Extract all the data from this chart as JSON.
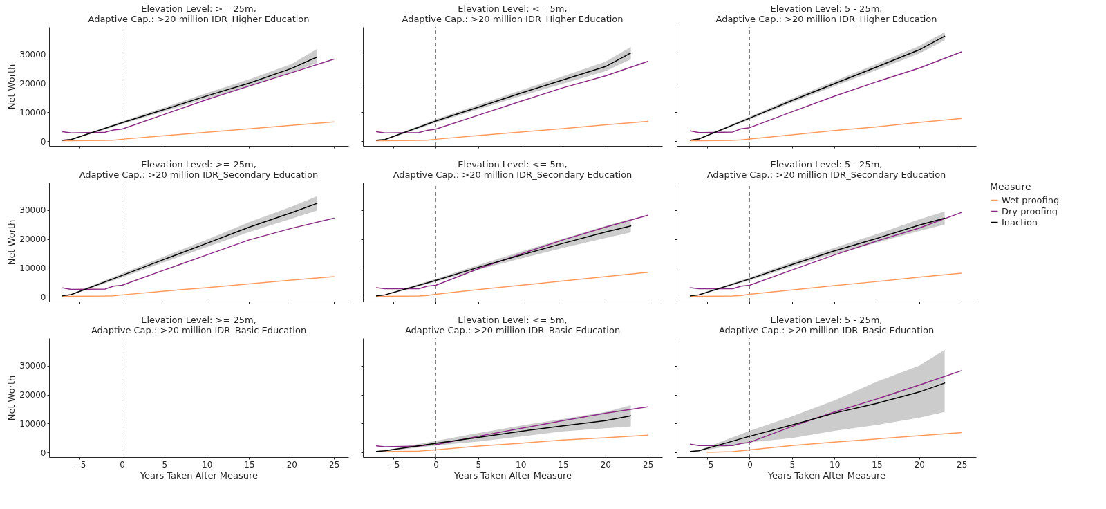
{
  "chart_data": [
    {
      "type": "line",
      "title": "Elevation Level: >= 25m,\nAdaptive Cap.: >20 million IDR_Higher Education",
      "ylabel": "Net Worth",
      "xlim": [
        -8.6,
        26.7
      ],
      "ylim": [
        -1600,
        39500
      ],
      "xticks": [
        -5,
        0,
        5,
        10,
        15,
        20,
        25
      ],
      "yticks": [
        0,
        10000,
        20000,
        30000
      ],
      "tick_labels": "y",
      "ref_lines": [
        {
          "axis": "x",
          "value": 0,
          "color": "#7f7f7f",
          "line_style": "dashed"
        }
      ],
      "series": [
        {
          "color": "#fd9a5c",
          "x": [
            -7,
            -6,
            -2,
            -1,
            0,
            5,
            10,
            15,
            20,
            25
          ],
          "values": [
            200,
            200,
            300,
            400,
            700,
            1900,
            3100,
            4300,
            5500,
            6700
          ]
        },
        {
          "color": "#8b2a84",
          "x": [
            -7,
            -6,
            -2,
            -1,
            0,
            5,
            10,
            15,
            20,
            25
          ],
          "values": [
            3300,
            2900,
            3100,
            3900,
            4200,
            9300,
            14400,
            19100,
            23700,
            28400
          ]
        },
        {
          "color": "#000000",
          "x": [
            -7,
            -6,
            0,
            5,
            10,
            15,
            20,
            23
          ],
          "values": [
            400,
            600,
            6400,
            11000,
            15700,
            20100,
            25200,
            29100
          ],
          "lower": [
            300,
            400,
            5900,
            10300,
            14800,
            18900,
            23800,
            27100
          ],
          "upper": [
            500,
            800,
            6900,
            11700,
            16700,
            21400,
            26700,
            31900
          ]
        }
      ]
    },
    {
      "type": "line",
      "title": "Elevation Level: <= 5m,\nAdaptive Cap.: >20 million IDR_Higher Education",
      "xlim": [
        -8.6,
        26.7
      ],
      "ylim": [
        -1600,
        39500
      ],
      "xticks": [
        -5,
        0,
        5,
        10,
        15,
        20,
        25
      ],
      "yticks": [
        0,
        10000,
        20000,
        30000
      ],
      "tick_labels": false,
      "ref_lines": [
        {
          "axis": "x",
          "value": 0,
          "color": "#7f7f7f",
          "line_style": "dashed"
        }
      ],
      "series": [
        {
          "color": "#fd9a5c",
          "x": [
            -7,
            -6,
            -2,
            -1,
            0,
            5,
            10,
            15,
            20,
            25
          ],
          "values": [
            200,
            200,
            300,
            400,
            700,
            2000,
            3200,
            4400,
            5700,
            6900
          ]
        },
        {
          "color": "#8b2a84",
          "x": [
            -7,
            -6,
            -2,
            -1,
            0,
            5,
            10,
            15,
            20,
            25
          ],
          "values": [
            3300,
            2900,
            3000,
            3800,
            4200,
            9000,
            13800,
            18500,
            22600,
            27600
          ]
        },
        {
          "color": "#000000",
          "x": [
            -7,
            -6,
            0,
            5,
            10,
            15,
            20,
            23
          ],
          "values": [
            400,
            600,
            7000,
            11800,
            16600,
            21200,
            25800,
            30500
          ],
          "lower": [
            300,
            400,
            6400,
            11000,
            15600,
            19900,
            24200,
            28300
          ],
          "upper": [
            500,
            800,
            7600,
            12600,
            17600,
            22500,
            27500,
            32600
          ]
        }
      ]
    },
    {
      "type": "line",
      "title": "Elevation Level: 5 - 25m,\nAdaptive Cap.: >20 million IDR_Higher Education",
      "xlim": [
        -8.6,
        26.7
      ],
      "ylim": [
        -1600,
        39500
      ],
      "xticks": [
        -5,
        0,
        5,
        10,
        15,
        20,
        25
      ],
      "yticks": [
        0,
        10000,
        20000,
        30000
      ],
      "tick_labels": false,
      "ref_lines": [
        {
          "axis": "x",
          "value": 0,
          "color": "#7f7f7f",
          "line_style": "dashed"
        }
      ],
      "series": [
        {
          "color": "#fd9a5c",
          "x": [
            -7,
            -6,
            -2,
            -1,
            0,
            5,
            10,
            15,
            20,
            25
          ],
          "values": [
            200,
            200,
            300,
            500,
            800,
            2200,
            3700,
            5000,
            6500,
            7900
          ]
        },
        {
          "color": "#8b2a84",
          "x": [
            -7,
            -6,
            -2,
            -1,
            0,
            5,
            10,
            15,
            20,
            25
          ],
          "values": [
            3600,
            3000,
            3200,
            4300,
            4700,
            10200,
            15600,
            20600,
            25300,
            30900
          ]
        },
        {
          "color": "#000000",
          "x": [
            -7,
            -6,
            0,
            5,
            10,
            15,
            20,
            23
          ],
          "values": [
            400,
            800,
            8000,
            14100,
            19900,
            25700,
            31600,
            36300
          ],
          "lower": [
            300,
            600,
            7500,
            13400,
            19000,
            24600,
            30300,
            34900
          ],
          "upper": [
            500,
            1000,
            8500,
            14800,
            20800,
            26800,
            32900,
            37700
          ]
        }
      ]
    },
    {
      "type": "line",
      "title": "Elevation Level: >= 25m,\nAdaptive Cap.: >20 million IDR_Secondary Education",
      "ylabel": "Net Worth",
      "xlim": [
        -8.6,
        26.7
      ],
      "ylim": [
        -1600,
        39500
      ],
      "xticks": [
        -5,
        0,
        5,
        10,
        15,
        20,
        25
      ],
      "yticks": [
        0,
        10000,
        20000,
        30000
      ],
      "tick_labels": "y",
      "ref_lines": [
        {
          "axis": "x",
          "value": 0,
          "color": "#7f7f7f",
          "line_style": "dashed"
        }
      ],
      "series": [
        {
          "color": "#fd9a5c",
          "x": [
            -7,
            -6,
            -2,
            -1,
            0,
            5,
            10,
            15,
            20,
            25
          ],
          "values": [
            200,
            200,
            300,
            400,
            700,
            2000,
            3200,
            4500,
            5800,
            7000
          ]
        },
        {
          "color": "#8b2a84",
          "x": [
            -7,
            -6,
            -2,
            -1,
            0,
            5,
            10,
            15,
            20,
            25
          ],
          "values": [
            3100,
            2600,
            2700,
            3700,
            4000,
            9300,
            14500,
            19700,
            23700,
            27200
          ]
        },
        {
          "color": "#000000",
          "x": [
            -7,
            -6,
            0,
            5,
            10,
            15,
            20,
            23
          ],
          "values": [
            400,
            800,
            7400,
            13000,
            18500,
            24100,
            29100,
            32300
          ],
          "lower": [
            300,
            600,
            6700,
            12000,
            17200,
            22400,
            27000,
            29800
          ],
          "upper": [
            500,
            1000,
            8100,
            14000,
            19800,
            25800,
            31200,
            34800
          ]
        }
      ]
    },
    {
      "type": "line",
      "title": "Elevation Level: <= 5m,\nAdaptive Cap.: >20 million IDR_Secondary Education",
      "xlim": [
        -8.6,
        26.7
      ],
      "ylim": [
        -1600,
        39500
      ],
      "xticks": [
        -5,
        0,
        5,
        10,
        15,
        20,
        25
      ],
      "yticks": [
        0,
        10000,
        20000,
        30000
      ],
      "tick_labels": false,
      "ref_lines": [
        {
          "axis": "x",
          "value": 0,
          "color": "#7f7f7f",
          "line_style": "dashed"
        }
      ],
      "series": [
        {
          "color": "#fd9a5c",
          "x": [
            -7,
            -6,
            -2,
            -1,
            0,
            5,
            10,
            15,
            20,
            25
          ],
          "values": [
            200,
            200,
            300,
            500,
            900,
            2500,
            4000,
            5500,
            7000,
            8500
          ]
        },
        {
          "color": "#8b2a84",
          "x": [
            -7,
            -6,
            -2,
            -1,
            0,
            5,
            10,
            15,
            20,
            25
          ],
          "values": [
            3200,
            2800,
            2800,
            3700,
            4000,
            9700,
            14800,
            19700,
            24100,
            28200
          ]
        },
        {
          "color": "#000000",
          "x": [
            -7,
            -6,
            0,
            5,
            10,
            15,
            20,
            23
          ],
          "values": [
            400,
            700,
            5700,
            10200,
            14400,
            18500,
            22400,
            24500
          ],
          "lower": [
            300,
            500,
            5200,
            9400,
            13200,
            16900,
            20300,
            22300
          ],
          "upper": [
            500,
            900,
            6200,
            11000,
            15600,
            20100,
            24500,
            26900
          ]
        }
      ]
    },
    {
      "type": "line",
      "title": "Elevation Level: 5 - 25m,\nAdaptive Cap.: >20 million IDR_Secondary Education",
      "legend_title": "Measure",
      "legend": "right",
      "xlim": [
        -8.6,
        26.7
      ],
      "ylim": [
        -1600,
        39500
      ],
      "xticks": [
        -5,
        0,
        5,
        10,
        15,
        20,
        25
      ],
      "yticks": [
        0,
        10000,
        20000,
        30000
      ],
      "tick_labels": false,
      "ref_lines": [
        {
          "axis": "x",
          "value": 0,
          "color": "#7f7f7f",
          "line_style": "dashed"
        }
      ],
      "series": [
        {
          "name": "Wet proofing",
          "color": "#fd9a5c",
          "x": [
            -7,
            -6,
            -2,
            -1,
            0,
            5,
            10,
            15,
            20,
            25
          ],
          "values": [
            200,
            200,
            300,
            500,
            900,
            2400,
            3900,
            5300,
            6800,
            8200
          ]
        },
        {
          "name": "Dry proofing",
          "color": "#8b2a84",
          "x": [
            -7,
            -6,
            -2,
            -1,
            0,
            5,
            10,
            15,
            20,
            25
          ],
          "values": [
            3200,
            2800,
            2800,
            3700,
            4000,
            9300,
            14500,
            19300,
            23800,
            29200
          ]
        },
        {
          "name": "Inaction",
          "color": "#000000",
          "x": [
            -7,
            -6,
            0,
            5,
            10,
            15,
            20,
            23
          ],
          "values": [
            400,
            700,
            6200,
            11200,
            15900,
            20200,
            24800,
            27200
          ],
          "lower": [
            300,
            500,
            5700,
            10400,
            14800,
            18700,
            22800,
            25000
          ],
          "upper": [
            500,
            900,
            6700,
            12000,
            17000,
            21700,
            26800,
            29500
          ]
        }
      ]
    },
    {
      "type": "line",
      "title": "Elevation Level: >= 25m,\nAdaptive Cap.: >20 million IDR_Basic Education",
      "xlabel": "Years Taken After Measure",
      "ylabel": "Net Worth",
      "xlim": [
        -8.6,
        26.7
      ],
      "ylim": [
        -1600,
        39500
      ],
      "xticks": [
        -5,
        0,
        5,
        10,
        15,
        20,
        25
      ],
      "yticks": [
        0,
        10000,
        20000,
        30000
      ],
      "ref_lines": [
        {
          "axis": "x",
          "value": 0,
          "color": "#7f7f7f",
          "line_style": "dashed"
        }
      ]
    },
    {
      "type": "line",
      "title": "Elevation Level: <= 5m,\nAdaptive Cap.: >20 million IDR_Basic Education",
      "xlabel": "Years Taken After Measure",
      "xlim": [
        -8.6,
        26.7
      ],
      "ylim": [
        -1600,
        39500
      ],
      "xticks": [
        -5,
        0,
        5,
        10,
        15,
        20,
        25
      ],
      "yticks": [
        0,
        10000,
        20000,
        30000
      ],
      "tick_labels": "x",
      "ref_lines": [
        {
          "axis": "x",
          "value": 0,
          "color": "#7f7f7f",
          "line_style": "dashed"
        }
      ],
      "series": [
        {
          "color": "#fd9a5c",
          "x": [
            -7,
            -6,
            -2,
            -1,
            0,
            5,
            10,
            15,
            20,
            25
          ],
          "values": [
            300,
            300,
            500,
            700,
            900,
            2200,
            3200,
            4300,
            5100,
            6000
          ]
        },
        {
          "color": "#8b2a84",
          "x": [
            -7,
            -6,
            -2,
            -1,
            0,
            5,
            10,
            15,
            20,
            25
          ],
          "values": [
            2300,
            2000,
            2200,
            2600,
            2700,
            5600,
            8300,
            11000,
            13600,
            15800
          ]
        },
        {
          "color": "#000000",
          "x": [
            -7,
            -6,
            0,
            5,
            10,
            15,
            20,
            23
          ],
          "values": [
            400,
            600,
            3200,
            5200,
            7300,
            9200,
            11000,
            12700
          ],
          "lower": [
            300,
            400,
            2400,
            3800,
            5500,
            7300,
            8400,
            9000
          ],
          "upper": [
            500,
            800,
            4000,
            6700,
            9300,
            11600,
            14000,
            16300
          ]
        }
      ]
    },
    {
      "type": "line",
      "title": "Elevation Level: 5 - 25m,\nAdaptive Cap.: >20 million IDR_Basic Education",
      "xlabel": "Years Taken After Measure",
      "xlim": [
        -8.6,
        26.7
      ],
      "ylim": [
        -1600,
        39500
      ],
      "xticks": [
        -5,
        0,
        5,
        10,
        15,
        20,
        25
      ],
      "yticks": [
        0,
        10000,
        20000,
        30000
      ],
      "tick_labels": "x",
      "ref_lines": [
        {
          "axis": "x",
          "value": 0,
          "color": "#7f7f7f",
          "line_style": "dashed"
        }
      ],
      "series": [
        {
          "color": "#fd9a5c",
          "x": [
            -5,
            -2,
            0,
            5,
            10,
            15,
            20,
            25
          ],
          "values": [
            100,
            300,
            900,
            2400,
            3600,
            4700,
            5800,
            6900
          ]
        },
        {
          "color": "#8b2a84",
          "x": [
            -7,
            -6,
            -2,
            -1,
            0,
            5,
            10,
            15,
            20,
            25
          ],
          "values": [
            2900,
            2400,
            2400,
            3100,
            3500,
            9000,
            14000,
            18500,
            23300,
            28300
          ]
        },
        {
          "color": "#000000",
          "x": [
            -7,
            -6,
            0,
            5,
            10,
            15,
            20,
            23
          ],
          "values": [
            400,
            600,
            5600,
            9500,
            13600,
            17000,
            20900,
            24000
          ],
          "lower": [
            300,
            400,
            3500,
            5000,
            7500,
            9500,
            12000,
            14000
          ],
          "upper": [
            500,
            800,
            7500,
            12500,
            18000,
            24500,
            30000,
            35500
          ]
        }
      ]
    }
  ]
}
